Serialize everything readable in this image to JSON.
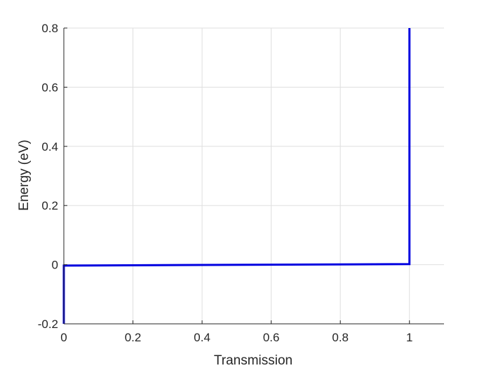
{
  "chart_data": {
    "type": "line",
    "title": "",
    "xlabel": "Transmission",
    "ylabel": "Energy (eV)",
    "xlim": [
      0,
      1.1
    ],
    "ylim": [
      -0.2,
      0.8
    ],
    "x_ticks": [
      0,
      0.2,
      0.4,
      0.6,
      0.8,
      1
    ],
    "x_tick_labels": [
      "0",
      "0.2",
      "0.4",
      "0.6",
      "0.8",
      "1"
    ],
    "y_ticks": [
      -0.2,
      0,
      0.2,
      0.4,
      0.6,
      0.8
    ],
    "y_tick_labels": [
      "-0.2",
      "0",
      "0.2",
      "0.4",
      "0.6",
      "0.8"
    ],
    "grid": true,
    "series": [
      {
        "color": "#0000e0",
        "x": [
          0,
          0,
          1,
          1
        ],
        "y": [
          -0.2,
          -0.003,
          0.002,
          0.8
        ]
      }
    ]
  }
}
